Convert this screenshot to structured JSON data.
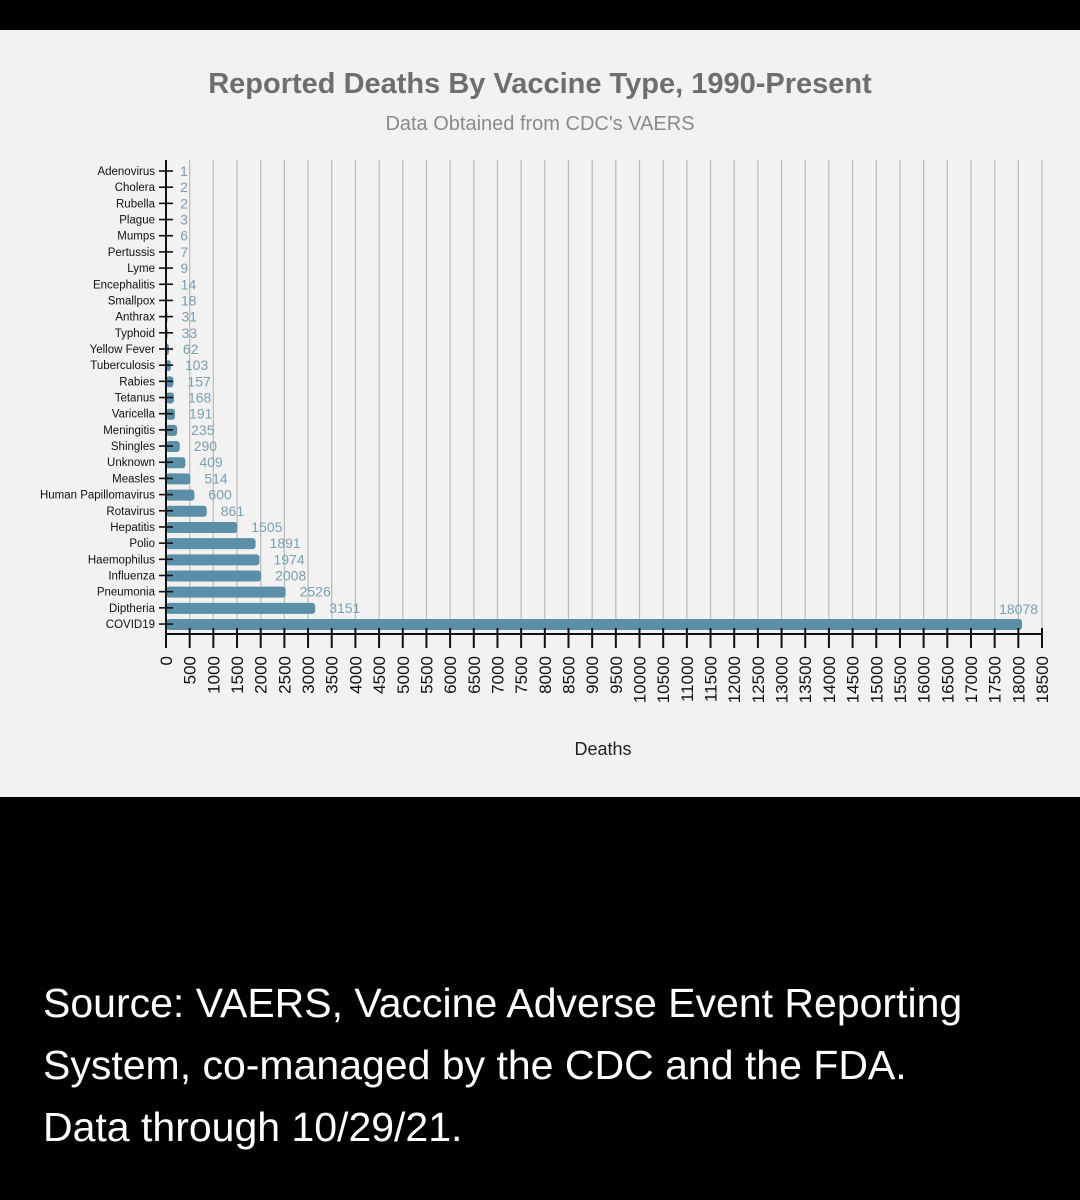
{
  "chart_data": {
    "type": "bar",
    "orientation": "horizontal",
    "title": "Reported Deaths By Vaccine Type, 1990-Present",
    "subtitle": "Data Obtained from CDC's VAERS",
    "xlabel": "Deaths",
    "ylabel": "",
    "xlim": [
      0,
      18500
    ],
    "xticks": [
      0,
      500,
      1000,
      1500,
      2000,
      2500,
      3000,
      3500,
      4000,
      4500,
      5000,
      5500,
      6000,
      6500,
      7000,
      7500,
      8000,
      8500,
      9000,
      9500,
      10000,
      10500,
      11000,
      11500,
      12000,
      12500,
      13000,
      13500,
      14000,
      14500,
      15000,
      15500,
      16000,
      16500,
      17000,
      17500,
      18000,
      18500
    ],
    "grid": true,
    "categories": [
      "Adenovirus",
      "Cholera",
      "Rubella",
      "Plague",
      "Mumps",
      "Pertussis",
      "Lyme",
      "Encephalitis",
      "Smallpox",
      "Anthrax",
      "Typhoid",
      "Yellow Fever",
      "Tuberculosis",
      "Rabies",
      "Tetanus",
      "Varicella",
      "Meningitis",
      "Shingles",
      "Unknown",
      "Measles",
      "Human Papillomavirus",
      "Rotavirus",
      "Hepatitis",
      "Polio",
      "Haemophilus",
      "Influenza",
      "Pneumonia",
      "Diptheria",
      "COVID19"
    ],
    "values": [
      1,
      2,
      2,
      3,
      6,
      7,
      9,
      14,
      18,
      31,
      33,
      62,
      103,
      157,
      168,
      191,
      235,
      290,
      409,
      514,
      600,
      861,
      1505,
      1891,
      1974,
      2008,
      2526,
      3151,
      18078
    ],
    "colors": {
      "bar": "#5b8fa8",
      "label": "#7a9fb0",
      "grid": "#bdbdbd",
      "axis": "#111111",
      "title": "#6e6e6e",
      "subtitle": "#8a8a8a"
    }
  },
  "caption": {
    "lines": [
      "Source: VAERS, Vaccine Adverse Event Reporting",
      "System, co-managed by the CDC and the FDA.",
      "Data through 10/29/21."
    ]
  }
}
